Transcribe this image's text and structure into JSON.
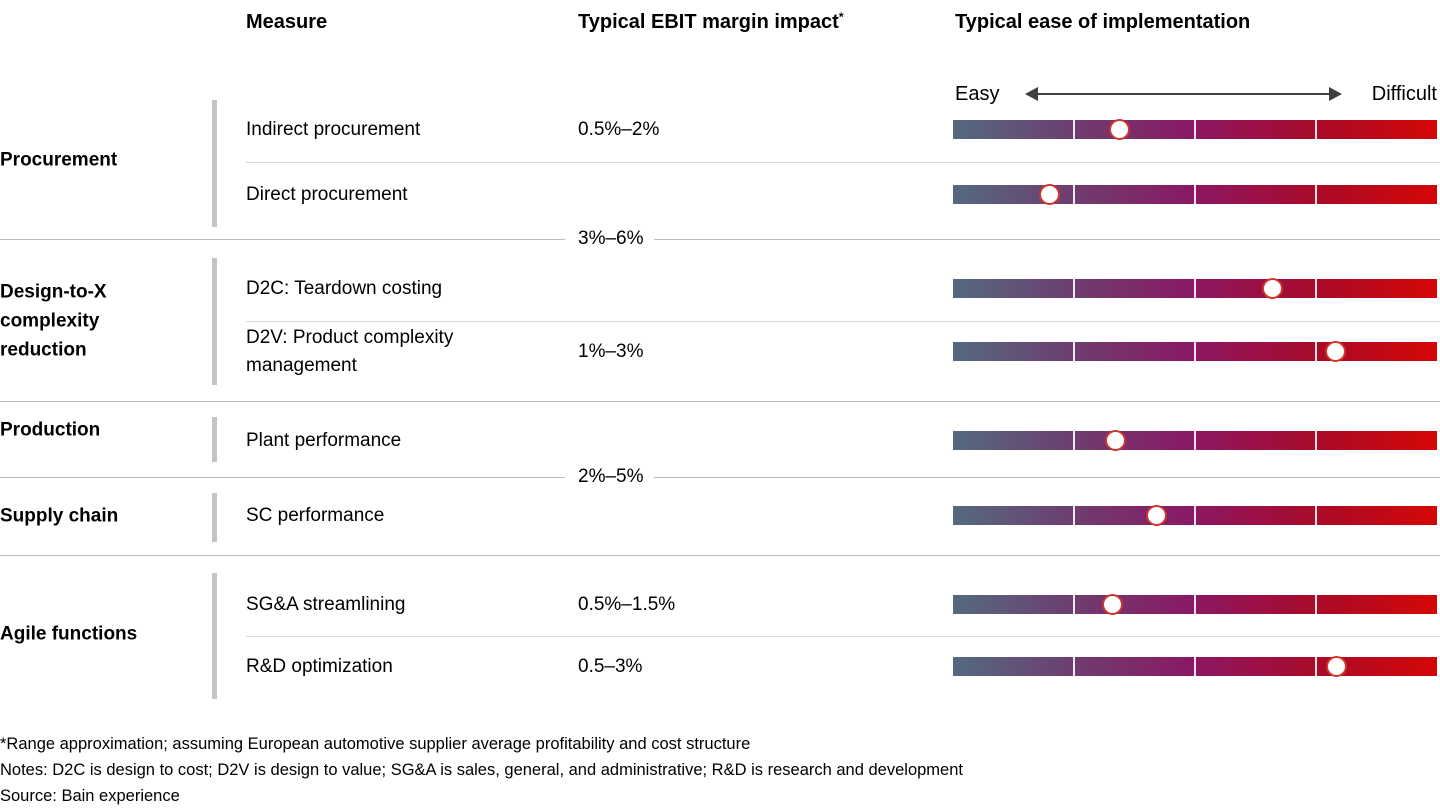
{
  "header": {
    "measure": "Measure",
    "ebit": "Typical EBIT margin impact",
    "ebit_marker": "*",
    "ease": "Typical ease of implementation"
  },
  "chart_data": {
    "type": "table",
    "columns": [
      "Measure",
      "Typical EBIT margin impact*",
      "Typical ease of implementation"
    ],
    "ease_scale": {
      "left_label": "Easy",
      "right_label": "Difficult",
      "min": 0,
      "max": 1
    },
    "groups": [
      {
        "category": "Procurement",
        "ebit_label_on_divider_below": "3%–6%",
        "rows": [
          {
            "measure": "Indirect procurement",
            "ebit_label": "0.5%–2%",
            "ease_position": 0.345
          },
          {
            "measure": "Direct procurement",
            "ebit_label": "",
            "ease_position": 0.2
          }
        ]
      },
      {
        "category": "Design-to-X\ncomplexity\nreduction",
        "ebit_label_on_divider_below": "",
        "rows": [
          {
            "measure": "D2C: Teardown costing",
            "ebit_label": "",
            "ease_position": 0.66
          },
          {
            "measure": "D2V: Product complexity\nmanagement",
            "ebit_label": "1%–3%",
            "ease_position": 0.79
          }
        ]
      },
      {
        "category": "Production",
        "ebit_label_on_divider_below": "2%–5%",
        "rows": [
          {
            "measure": "Plant performance",
            "ebit_label": "",
            "ease_position": 0.335
          }
        ]
      },
      {
        "category": "Supply chain",
        "ebit_label_on_divider_below": "",
        "rows": [
          {
            "measure": "SC performance",
            "ebit_label": "",
            "ease_position": 0.42
          }
        ]
      },
      {
        "category": "Agile functions",
        "ebit_label_on_divider_below": null,
        "rows": [
          {
            "measure": "SG&A streamlining",
            "ebit_label": "0.5%–1.5%",
            "ease_position": 0.33
          },
          {
            "measure": "R&D optimization",
            "ebit_label": "0.5–3%",
            "ease_position": 0.793
          }
        ]
      }
    ]
  },
  "footnotes": [
    "*Range approximation; assuming European automotive supplier average profitability and cost structure",
    "Notes: D2C is design to cost; D2V is design to value; SG&A is sales, general, and administrative; R&D is research and development",
    "Source: Bain experience"
  ],
  "colors": {
    "bar_gradient": [
      "#546a80",
      "#6e3d6f",
      "#8c1764",
      "#a90a28",
      "#d40707"
    ],
    "dot_fill": "#ffffff",
    "dot_border": "#d0342c",
    "bracket": "#c4c4c4",
    "section_divider": "#bdbdbd",
    "row_divider": "#d8d8d8",
    "arrow": "#3f3f3f",
    "text": "#000000"
  }
}
